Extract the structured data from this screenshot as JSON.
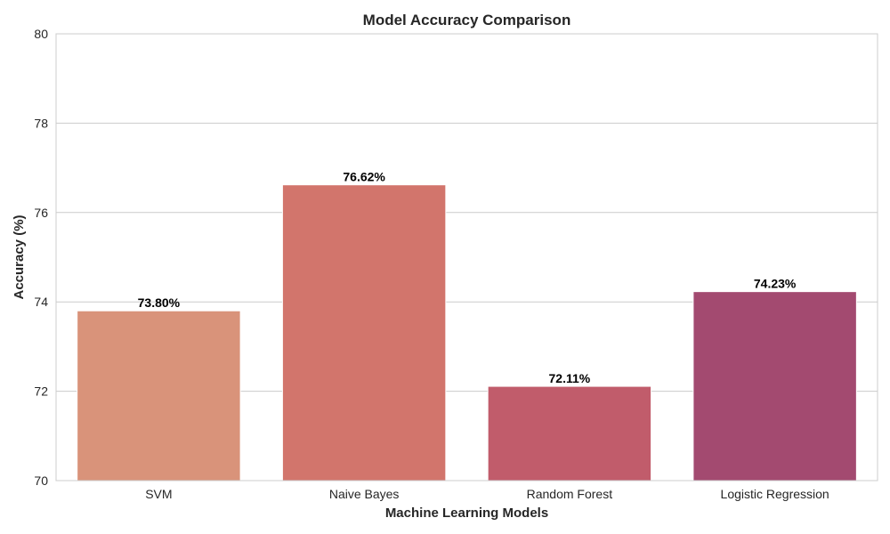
{
  "chart_data": {
    "type": "bar",
    "title": "Model Accuracy Comparison",
    "xlabel": "Machine Learning Models",
    "ylabel": "Accuracy (%)",
    "categories": [
      "SVM",
      "Naive Bayes",
      "Random Forest",
      "Logistic Regression"
    ],
    "values": [
      73.8,
      76.62,
      72.11,
      74.23
    ],
    "data_labels": [
      "73.80%",
      "76.62%",
      "72.11%",
      "74.23%"
    ],
    "colors": [
      "#d9937a",
      "#d2756c",
      "#c15c6b",
      "#a34a70"
    ],
    "ylim": [
      70,
      80
    ],
    "yticks": [
      70,
      72,
      74,
      76,
      78,
      80
    ],
    "grid": true,
    "grid_axis": "y"
  }
}
